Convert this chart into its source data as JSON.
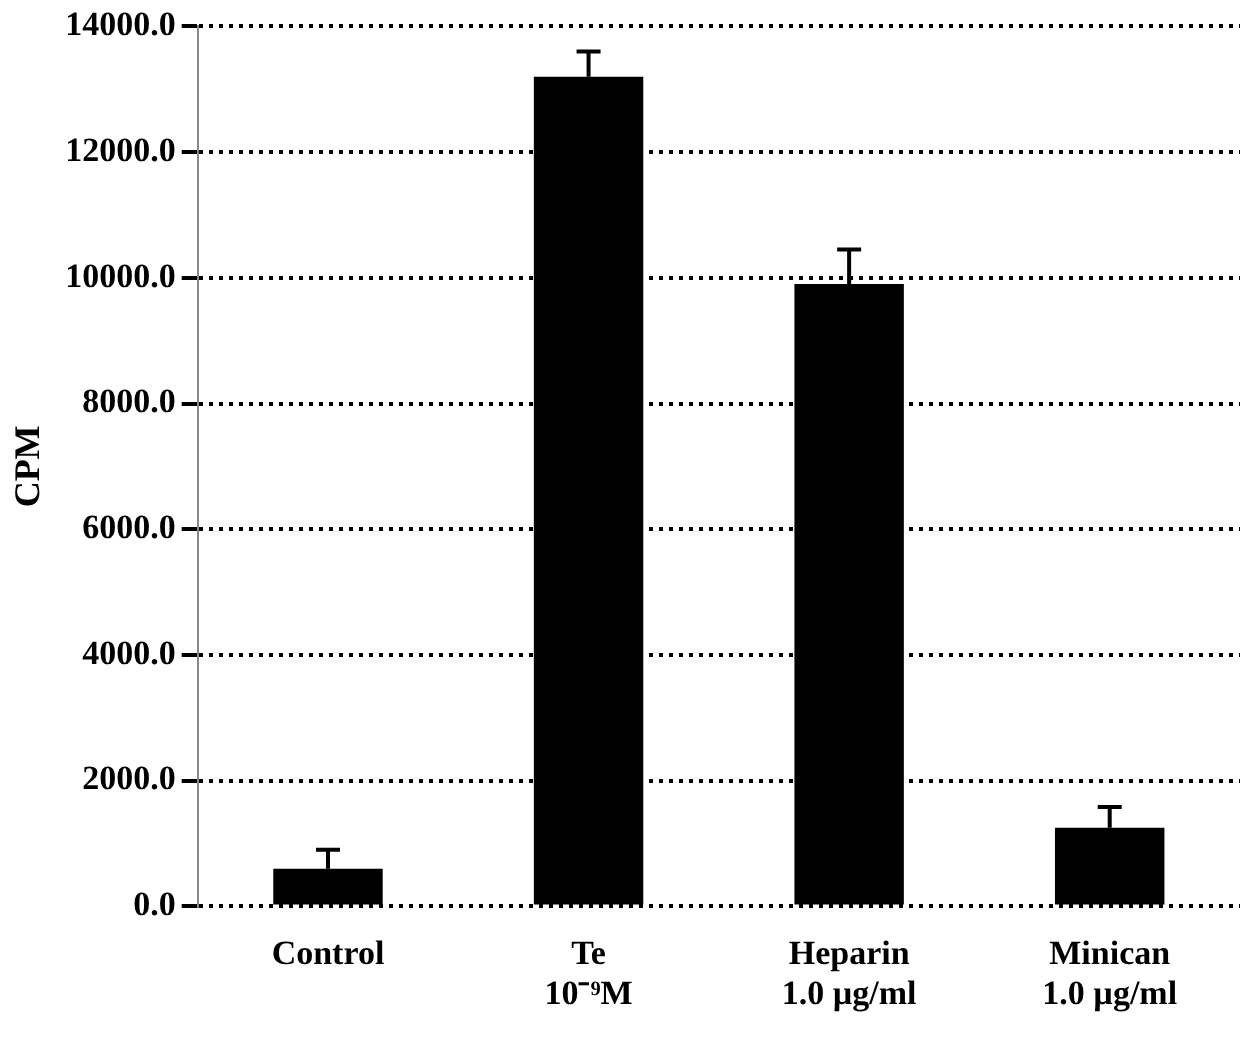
{
  "chart_data": {
    "type": "bar",
    "ylabel": "CPM",
    "categories": [
      "Control",
      "Te\n10⁻⁹M",
      "Heparin\n1.0 µg/ml",
      "Minican\n1.0 µg/ml"
    ],
    "values": [
      600,
      13200,
      9900,
      1250
    ],
    "errors": [
      [
        600,
        900
      ],
      [
        13200,
        13600
      ],
      [
        9900,
        10450
      ],
      [
        1250,
        1580
      ]
    ],
    "color": "#000000",
    "ylim": [
      0,
      14000
    ],
    "yticks": [
      {
        "value": 0,
        "label": "0.0"
      },
      {
        "value": 2000,
        "label": "2000.0"
      },
      {
        "value": 4000,
        "label": "4000.0"
      },
      {
        "value": 6000,
        "label": "6000.0"
      },
      {
        "value": 8000,
        "label": "8000.0"
      },
      {
        "value": 10000,
        "label": "10000.0"
      },
      {
        "value": 12000,
        "label": "12000.0"
      },
      {
        "value": 14000,
        "label": "14000.0"
      }
    ],
    "grid": "y",
    "legend": false
  }
}
